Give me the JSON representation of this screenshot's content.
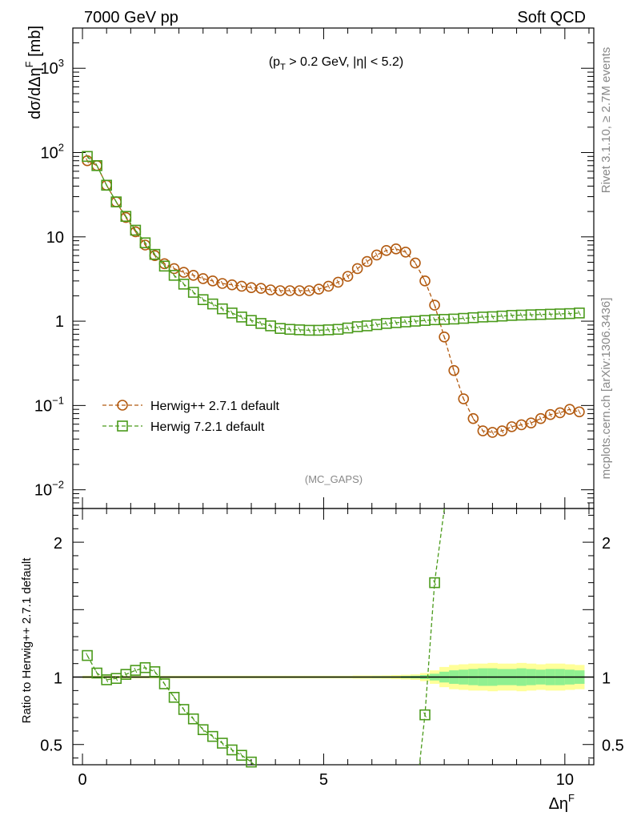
{
  "header": {
    "left": "7000 GeV pp",
    "right": "Soft QCD"
  },
  "side_labels": {
    "upper": "Rivet 3.1.10, ≥ 2.7M events",
    "lower": "mcplots.cern.ch [arXiv:1306.3436]"
  },
  "main_panel": {
    "annotation": "(p",
    "annotation_sub": "T",
    "annotation_rest": " > 0.2 GeV, |η| < 5.2)",
    "watermark": "(MC_GAPS)",
    "ylabel": "dσ/dΔη",
    "ylabel_sup": "F",
    "ylabel_unit": " [mb]",
    "ytick_labels": [
      {
        "base": "10",
        "exp": "3",
        "value": 1000
      },
      {
        "base": "10",
        "exp": "2",
        "value": 100
      },
      {
        "base": "10",
        "exp": "",
        "value": 10
      },
      {
        "base": "1",
        "exp": "",
        "value": 1
      },
      {
        "base": "10",
        "exp": "−1",
        "value": 0.1
      },
      {
        "base": "10",
        "exp": "−2",
        "value": 0.01
      }
    ]
  },
  "ratio_panel": {
    "ylabel": "Ratio to Herwig++ 2.7.1 default",
    "ytick_labels": [
      "2",
      "1",
      "0.5"
    ],
    "ytick_values": [
      2,
      1,
      0.5
    ]
  },
  "xaxis": {
    "label": "Δη",
    "label_sup": "F",
    "tick_labels": [
      "0",
      "5",
      "10"
    ],
    "tick_values": [
      0,
      5,
      10
    ]
  },
  "legend": [
    {
      "name": "Herwig++ 2.7.1 default",
      "color": "#b25a10",
      "marker": "circle"
    },
    {
      "name": "Herwig 7.2.1 default",
      "color": "#4a9a1a",
      "marker": "square"
    }
  ],
  "colors": {
    "band_inner": "#90f090",
    "band_outer": "#ffff99"
  },
  "chart_data": [
    {
      "type": "line",
      "yscale": "log",
      "xlim": [
        -0.2,
        10.6
      ],
      "ylim": [
        0.006,
        3000
      ],
      "grid": false,
      "legend_position": "center-left",
      "series": [
        {
          "name": "Herwig++ 2.7.1 default",
          "x": [
            0.1,
            0.3,
            0.5,
            0.7,
            0.9,
            1.1,
            1.3,
            1.5,
            1.7,
            1.9,
            2.1,
            2.3,
            2.5,
            2.7,
            2.9,
            3.1,
            3.3,
            3.5,
            3.7,
            3.9,
            4.1,
            4.3,
            4.5,
            4.7,
            4.9,
            5.1,
            5.3,
            5.5,
            5.7,
            5.9,
            6.1,
            6.3,
            6.5,
            6.7,
            6.9,
            7.1,
            7.3,
            7.5,
            7.7,
            7.9,
            8.1,
            8.3,
            8.5,
            8.7,
            8.9,
            9.1,
            9.3,
            9.5,
            9.7,
            9.9,
            10.1,
            10.3
          ],
          "y": [
            80,
            70,
            41,
            26,
            17,
            11.5,
            8,
            6,
            4.8,
            4.2,
            3.8,
            3.5,
            3.2,
            3.0,
            2.8,
            2.7,
            2.6,
            2.5,
            2.45,
            2.35,
            2.3,
            2.3,
            2.3,
            2.3,
            2.4,
            2.6,
            2.9,
            3.4,
            4.2,
            5.1,
            6.1,
            6.9,
            7.2,
            6.6,
            4.9,
            3.0,
            1.55,
            0.65,
            0.26,
            0.12,
            0.07,
            0.05,
            0.048,
            0.05,
            0.056,
            0.059,
            0.062,
            0.07,
            0.078,
            0.082,
            0.09,
            0.084
          ]
        },
        {
          "name": "Herwig 7.2.1 default",
          "x": [
            0.1,
            0.3,
            0.5,
            0.7,
            0.9,
            1.1,
            1.3,
            1.5,
            1.7,
            1.9,
            2.1,
            2.3,
            2.5,
            2.7,
            2.9,
            3.1,
            3.3,
            3.5,
            3.7,
            3.9,
            4.1,
            4.3,
            4.5,
            4.7,
            4.9,
            5.1,
            5.3,
            5.5,
            5.7,
            5.9,
            6.1,
            6.3,
            6.5,
            6.7,
            6.9,
            7.1,
            7.3,
            7.5,
            7.7,
            7.9,
            8.1,
            8.3,
            8.5,
            8.7,
            8.9,
            9.1,
            9.3,
            9.5,
            9.7,
            9.9,
            10.1,
            10.3
          ],
          "y": [
            90,
            70,
            41,
            26,
            17.5,
            12,
            8.5,
            6.2,
            4.5,
            3.5,
            2.75,
            2.2,
            1.8,
            1.6,
            1.4,
            1.25,
            1.12,
            1.02,
            0.94,
            0.88,
            0.82,
            0.8,
            0.79,
            0.78,
            0.78,
            0.79,
            0.8,
            0.83,
            0.86,
            0.88,
            0.91,
            0.94,
            0.96,
            0.98,
            1.0,
            1.02,
            1.04,
            1.05,
            1.06,
            1.08,
            1.1,
            1.12,
            1.13,
            1.15,
            1.17,
            1.18,
            1.19,
            1.2,
            1.21,
            1.22,
            1.23,
            1.25
          ]
        }
      ]
    },
    {
      "type": "line",
      "yscale": "linear",
      "xlim": [
        -0.2,
        10.6
      ],
      "ylim": [
        0.35,
        2.25
      ],
      "grid": false,
      "reference_line": 1,
      "series": [
        {
          "name": "Herwig 7.2.1 default",
          "x": [
            0.1,
            0.3,
            0.5,
            0.7,
            0.9,
            1.1,
            1.3,
            1.5,
            1.7,
            1.9,
            2.1,
            2.3,
            2.5,
            2.7,
            2.9,
            3.1,
            3.3,
            3.5,
            7.1,
            7.3
          ],
          "y": [
            1.16,
            1.03,
            0.98,
            0.99,
            1.02,
            1.05,
            1.07,
            1.04,
            0.95,
            0.85,
            0.76,
            0.69,
            0.61,
            0.56,
            0.51,
            0.46,
            0.42,
            0.37,
            0.72,
            1.7
          ]
        }
      ],
      "uncertainty_band": {
        "x": [
          0.1,
          0.3,
          0.5,
          0.7,
          0.9,
          1.1,
          1.3,
          1.5,
          1.7,
          1.9,
          2.1,
          2.3,
          2.5,
          2.7,
          2.9,
          3.1,
          3.3,
          3.5,
          3.7,
          3.9,
          4.1,
          4.3,
          4.5,
          4.7,
          4.9,
          5.1,
          5.3,
          5.5,
          5.7,
          5.9,
          6.1,
          6.3,
          6.5,
          6.7,
          6.9,
          7.1,
          7.3,
          7.5,
          7.7,
          7.9,
          8.1,
          8.3,
          8.5,
          8.7,
          8.9,
          9.1,
          9.3,
          9.5,
          9.7,
          9.9,
          10.1,
          10.3
        ],
        "inner": [
          0.005,
          0.005,
          0.005,
          0.005,
          0.005,
          0.005,
          0.005,
          0.005,
          0.005,
          0.005,
          0.005,
          0.005,
          0.005,
          0.005,
          0.005,
          0.005,
          0.005,
          0.005,
          0.005,
          0.005,
          0.005,
          0.005,
          0.005,
          0.005,
          0.005,
          0.005,
          0.005,
          0.005,
          0.005,
          0.005,
          0.006,
          0.006,
          0.006,
          0.008,
          0.01,
          0.015,
          0.025,
          0.04,
          0.05,
          0.055,
          0.06,
          0.065,
          0.065,
          0.06,
          0.06,
          0.065,
          0.06,
          0.055,
          0.06,
          0.06,
          0.055,
          0.05
        ],
        "outer": [
          0.01,
          0.01,
          0.01,
          0.01,
          0.01,
          0.01,
          0.01,
          0.01,
          0.01,
          0.01,
          0.01,
          0.01,
          0.01,
          0.01,
          0.01,
          0.01,
          0.01,
          0.01,
          0.01,
          0.01,
          0.01,
          0.01,
          0.01,
          0.01,
          0.01,
          0.01,
          0.01,
          0.01,
          0.012,
          0.012,
          0.012,
          0.013,
          0.015,
          0.017,
          0.02,
          0.03,
          0.05,
          0.075,
          0.09,
          0.095,
          0.1,
          0.1,
          0.105,
          0.1,
          0.1,
          0.105,
          0.1,
          0.095,
          0.1,
          0.1,
          0.095,
          0.09
        ]
      }
    }
  ]
}
